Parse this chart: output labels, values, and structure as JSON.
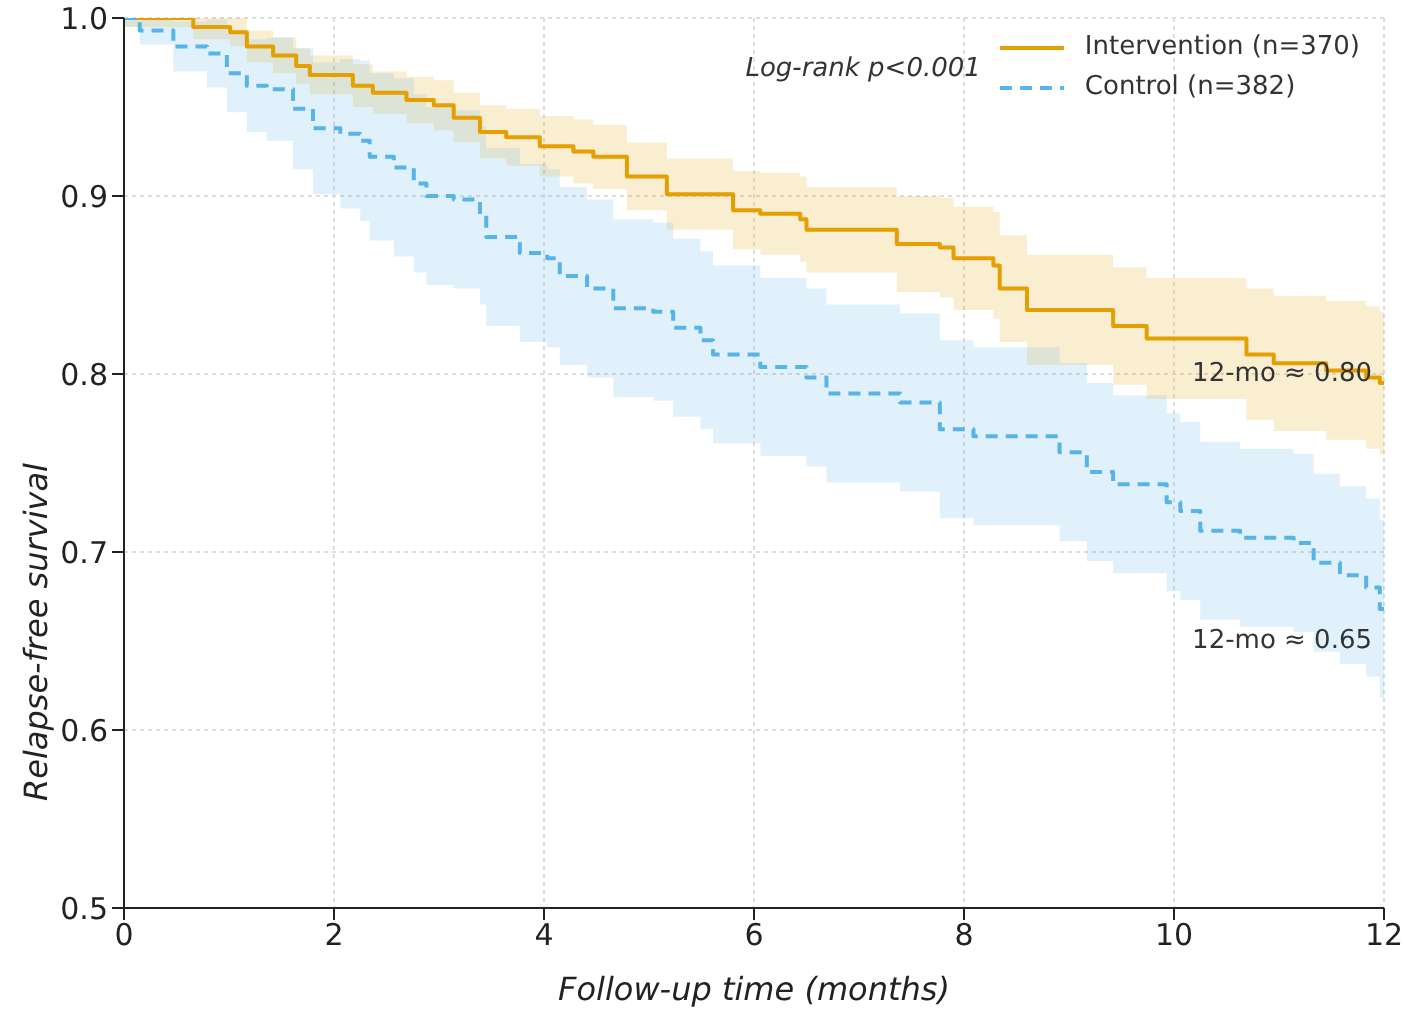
{
  "chart_data": {
    "type": "step",
    "xlabel": "Follow-up time (months)",
    "ylabel": "Relapse-free survival",
    "xlim": [
      0,
      12
    ],
    "xticks": [
      0,
      2,
      4,
      6,
      8,
      10,
      12
    ],
    "ylim": [
      0.5,
      1.0
    ],
    "yticks": [
      0.5,
      0.6,
      0.7,
      0.8,
      0.9,
      {
        "value": 1.0,
        "label": "1.0"
      }
    ],
    "grid": true,
    "legend": "top right",
    "annotations": [
      "Log-rank p<0.001",
      {
        "text": "12-mo ≈ 0.80",
        "x": 12,
        "y": 0.8
      },
      {
        "text": "12-mo ≈ 0.65",
        "x": 12,
        "y": 0.65
      }
    ],
    "series": [
      {
        "name": "Intervention (n=370)",
        "color": "#e69f00",
        "line_style": "solid",
        "x": [
          0,
          0.66,
          1.01,
          1.17,
          1.42,
          1.64,
          1.77,
          2.18,
          2.37,
          2.69,
          2.95,
          3.14,
          3.39,
          3.64,
          3.96,
          4.28,
          4.47,
          4.79,
          5.17,
          5.8,
          6.06,
          6.44,
          6.5,
          7.36,
          7.77,
          7.9,
          8.28,
          8.34,
          8.6,
          9.42,
          9.74,
          10.69,
          10.95,
          11.45,
          11.83,
          11.96,
          12
        ],
        "values": [
          1.0,
          0.995,
          0.992,
          0.984,
          0.979,
          0.973,
          0.968,
          0.962,
          0.958,
          0.954,
          0.951,
          0.944,
          0.936,
          0.933,
          0.928,
          0.925,
          0.922,
          0.911,
          0.901,
          0.892,
          0.89,
          0.887,
          0.881,
          0.873,
          0.871,
          0.865,
          0.861,
          0.848,
          0.836,
          0.827,
          0.82,
          0.811,
          0.806,
          0.802,
          0.798,
          0.795,
          0.795
        ],
        "lower": [
          0.995,
          0.988,
          0.984,
          0.975,
          0.969,
          0.963,
          0.957,
          0.95,
          0.946,
          0.941,
          0.937,
          0.93,
          0.921,
          0.917,
          0.911,
          0.907,
          0.904,
          0.892,
          0.881,
          0.87,
          0.867,
          0.863,
          0.857,
          0.846,
          0.843,
          0.836,
          0.831,
          0.818,
          0.805,
          0.794,
          0.786,
          0.774,
          0.768,
          0.763,
          0.758,
          0.755,
          0.755
        ],
        "upper": [
          1.0,
          1.0,
          1.0,
          0.993,
          0.989,
          0.983,
          0.979,
          0.974,
          0.97,
          0.967,
          0.965,
          0.958,
          0.951,
          0.949,
          0.945,
          0.943,
          0.94,
          0.93,
          0.921,
          0.914,
          0.913,
          0.911,
          0.905,
          0.9,
          0.899,
          0.894,
          0.891,
          0.878,
          0.867,
          0.86,
          0.854,
          0.848,
          0.844,
          0.841,
          0.838,
          0.835,
          0.835
        ]
      },
      {
        "name": "Control (n=382)",
        "color": "#56b4e9",
        "line_style": "dashed",
        "x": [
          0,
          0.15,
          0.47,
          0.79,
          0.98,
          1.17,
          1.36,
          1.61,
          1.8,
          2.06,
          2.25,
          2.34,
          2.57,
          2.76,
          2.88,
          3.14,
          3.39,
          3.45,
          3.77,
          4.03,
          4.15,
          4.41,
          4.66,
          5.04,
          5.23,
          5.49,
          5.61,
          6.06,
          6.5,
          6.69,
          7.39,
          7.77,
          8.09,
          8.91,
          9.17,
          9.42,
          9.93,
          10.06,
          10.25,
          10.63,
          11.14,
          11.33,
          11.58,
          11.83,
          11.96,
          12
        ],
        "values": [
          1.0,
          0.993,
          0.984,
          0.98,
          0.969,
          0.962,
          0.96,
          0.949,
          0.938,
          0.935,
          0.931,
          0.922,
          0.916,
          0.907,
          0.9,
          0.898,
          0.889,
          0.877,
          0.868,
          0.865,
          0.855,
          0.848,
          0.837,
          0.835,
          0.826,
          0.819,
          0.811,
          0.804,
          0.798,
          0.789,
          0.784,
          0.769,
          0.765,
          0.756,
          0.745,
          0.738,
          0.728,
          0.723,
          0.712,
          0.708,
          0.705,
          0.694,
          0.687,
          0.68,
          0.668,
          0.668
        ],
        "lower": [
          0.995,
          0.985,
          0.97,
          0.961,
          0.947,
          0.936,
          0.931,
          0.915,
          0.901,
          0.893,
          0.886,
          0.875,
          0.866,
          0.857,
          0.85,
          0.848,
          0.839,
          0.827,
          0.818,
          0.815,
          0.805,
          0.798,
          0.787,
          0.785,
          0.776,
          0.769,
          0.761,
          0.754,
          0.748,
          0.739,
          0.734,
          0.719,
          0.715,
          0.706,
          0.695,
          0.688,
          0.678,
          0.673,
          0.662,
          0.658,
          0.655,
          0.644,
          0.637,
          0.63,
          0.618,
          0.618
        ],
        "upper": [
          1.0,
          1.0,
          0.998,
          0.999,
          0.991,
          0.988,
          0.989,
          0.983,
          0.975,
          0.977,
          0.976,
          0.969,
          0.966,
          0.957,
          0.95,
          0.948,
          0.939,
          0.927,
          0.918,
          0.915,
          0.905,
          0.898,
          0.887,
          0.885,
          0.876,
          0.869,
          0.861,
          0.854,
          0.848,
          0.839,
          0.834,
          0.819,
          0.815,
          0.806,
          0.795,
          0.788,
          0.778,
          0.773,
          0.762,
          0.758,
          0.755,
          0.744,
          0.737,
          0.73,
          0.718,
          0.718
        ]
      }
    ]
  }
}
